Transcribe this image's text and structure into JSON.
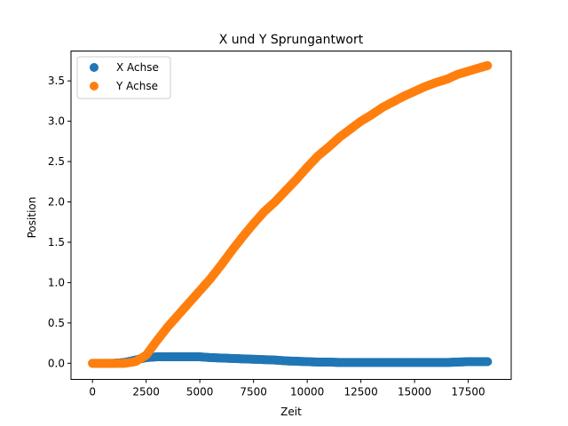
{
  "chart_data": {
    "type": "scatter",
    "title": "X und Y Sprungantwort",
    "xlabel": "Zeit",
    "ylabel": "Position",
    "xlim": [
      -1000,
      19500
    ],
    "ylim": [
      -0.2,
      3.87
    ],
    "xticks": [
      0,
      2500,
      5000,
      7500,
      10000,
      12500,
      15000,
      17500
    ],
    "xtick_labels": [
      "0",
      "2500",
      "5000",
      "7500",
      "10000",
      "12500",
      "15000",
      "17500"
    ],
    "yticks": [
      0.0,
      0.5,
      1.0,
      1.5,
      2.0,
      2.5,
      3.0,
      3.5
    ],
    "ytick_labels": [
      "0.0",
      "0.5",
      "1.0",
      "1.5",
      "2.0",
      "2.5",
      "3.0",
      "3.5"
    ],
    "grid": false,
    "legend_position": "top-left",
    "series": [
      {
        "name": "X Achse",
        "color": "#1f77b4",
        "x": [
          0,
          500,
          1000,
          1500,
          2000,
          2500,
          3000,
          3500,
          4000,
          4500,
          5000,
          5500,
          6000,
          6500,
          7000,
          7500,
          8000,
          8500,
          9000,
          9500,
          10000,
          10500,
          11000,
          11500,
          12000,
          12500,
          13000,
          13500,
          14000,
          14500,
          15000,
          15500,
          16000,
          16500,
          17000,
          17500,
          18000,
          18400
        ],
        "y": [
          0.0,
          0.0,
          0.0,
          0.01,
          0.04,
          0.07,
          0.08,
          0.08,
          0.08,
          0.08,
          0.08,
          0.07,
          0.065,
          0.06,
          0.055,
          0.05,
          0.045,
          0.04,
          0.03,
          0.025,
          0.02,
          0.015,
          0.015,
          0.01,
          0.01,
          0.01,
          0.01,
          0.01,
          0.01,
          0.01,
          0.01,
          0.01,
          0.01,
          0.01,
          0.015,
          0.02,
          0.02,
          0.02
        ]
      },
      {
        "name": "Y Achse",
        "color": "#ff7f0e",
        "x": [
          0,
          500,
          1000,
          1500,
          2000,
          2500,
          3000,
          3500,
          4000,
          4500,
          5000,
          5500,
          6000,
          6500,
          7000,
          7500,
          8000,
          8500,
          9000,
          9500,
          10000,
          10500,
          11000,
          11500,
          12000,
          12500,
          13000,
          13500,
          14000,
          14500,
          15000,
          15500,
          16000,
          16500,
          17000,
          17500,
          18000,
          18400
        ],
        "y": [
          0.0,
          0.0,
          0.0,
          0.0,
          0.02,
          0.1,
          0.28,
          0.45,
          0.6,
          0.75,
          0.9,
          1.05,
          1.22,
          1.4,
          1.57,
          1.73,
          1.88,
          2.0,
          2.14,
          2.28,
          2.43,
          2.57,
          2.68,
          2.8,
          2.9,
          3.0,
          3.08,
          3.17,
          3.24,
          3.31,
          3.37,
          3.43,
          3.48,
          3.52,
          3.58,
          3.62,
          3.66,
          3.69
        ]
      }
    ]
  }
}
